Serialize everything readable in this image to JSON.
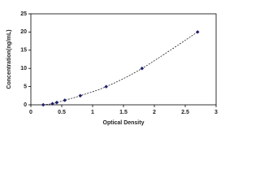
{
  "chart_data": {
    "type": "scatter",
    "x_label": "Optical Density",
    "y_label": "Concentration(ng/mL)",
    "x": [
      0.2,
      0.35,
      0.42,
      0.55,
      0.8,
      1.22,
      1.8,
      2.7
    ],
    "values": [
      0,
      0.31,
      0.63,
      1.25,
      2.5,
      5,
      10,
      20
    ],
    "color": "#1f1f6e",
    "line_style": "dashed",
    "xlim": [
      0,
      3
    ],
    "xticks": [
      0,
      0.5,
      1,
      1.5,
      2,
      2.5,
      3
    ],
    "ylim": [
      0,
      25
    ],
    "yticks": [
      0,
      5,
      10,
      15,
      20,
      25
    ]
  }
}
